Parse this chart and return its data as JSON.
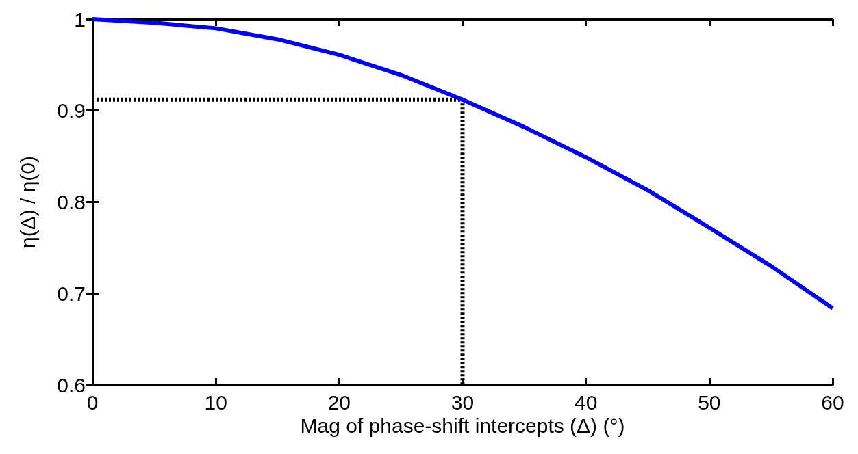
{
  "chart_data": {
    "type": "line",
    "xlabel": "Mag of phase-shift intercepts (Δ) (°)",
    "ylabel": "η(Δ) / η(0)",
    "xlim": [
      0,
      60
    ],
    "xticks": [
      0,
      10,
      20,
      30,
      40,
      50,
      60
    ],
    "ylim": [
      0.6,
      1
    ],
    "yticks": [
      0.6,
      0.7,
      0.8,
      0.9,
      1
    ],
    "marker": "none",
    "series": [
      {
        "color": "#0000ff",
        "line_style": "solid",
        "x": [
          0,
          5,
          10,
          15,
          20,
          25,
          30,
          35,
          40,
          45,
          50,
          55,
          60
        ],
        "values": [
          1.0,
          0.996,
          0.99,
          0.978,
          0.961,
          0.939,
          0.912,
          0.882,
          0.849,
          0.813,
          0.772,
          0.73,
          0.684
        ]
      },
      {
        "color": "#000000",
        "line_style": "dotted",
        "x": [
          0,
          30,
          30
        ],
        "values": [
          0.912,
          0.912,
          0.6
        ]
      }
    ]
  }
}
